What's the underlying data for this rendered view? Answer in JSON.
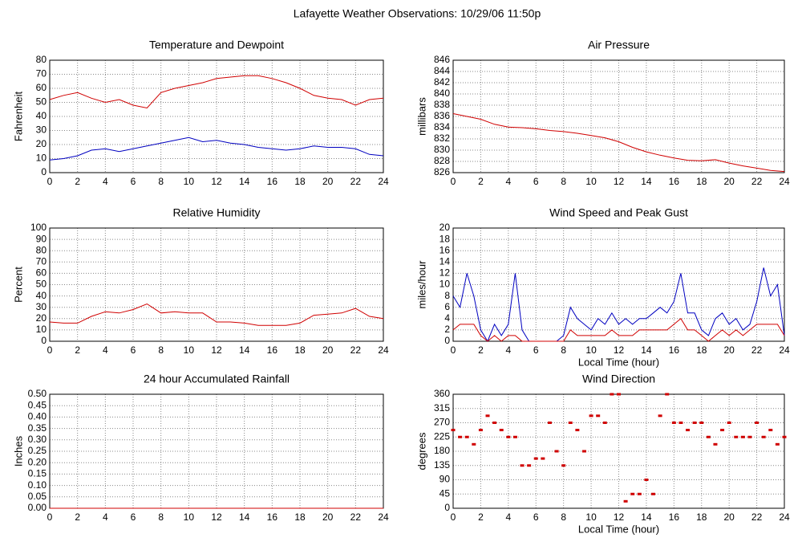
{
  "title": "Lafayette Weather Observations: 10/29/06 11:50p",
  "chart_data": [
    {
      "type": "line",
      "title": "Temperature and Dewpoint",
      "ylabel": "Fahrenheit",
      "x": [
        0,
        1,
        2,
        3,
        4,
        5,
        6,
        7,
        8,
        9,
        10,
        11,
        12,
        13,
        14,
        15,
        16,
        17,
        18,
        19,
        20,
        21,
        22,
        23,
        24
      ],
      "series": [
        {
          "color": "#d00000",
          "values": [
            52,
            55,
            57,
            53,
            50,
            52,
            48,
            46,
            57,
            60,
            62,
            64,
            67,
            68,
            69,
            69,
            67,
            64,
            60,
            55,
            53,
            52,
            48,
            52,
            53
          ]
        },
        {
          "color": "#0000c0",
          "values": [
            9,
            10,
            12,
            16,
            17,
            15,
            17,
            19,
            21,
            23,
            25,
            22,
            23,
            21,
            20,
            18,
            17,
            16,
            17,
            19,
            18,
            18,
            17,
            13,
            12
          ]
        }
      ],
      "xlim": [
        0,
        24
      ],
      "xticks": [
        0,
        2,
        4,
        6,
        8,
        10,
        12,
        14,
        16,
        18,
        20,
        22,
        24
      ],
      "ylim": [
        0,
        80
      ],
      "yticks": [
        0,
        10,
        20,
        30,
        40,
        50,
        60,
        70,
        80
      ],
      "grid": true
    },
    {
      "type": "line",
      "title": "Air Pressure",
      "ylabel": "millibars",
      "x": [
        0,
        1,
        2,
        3,
        4,
        5,
        6,
        7,
        8,
        9,
        10,
        11,
        12,
        13,
        14,
        15,
        16,
        17,
        18,
        19,
        20,
        21,
        22,
        23,
        24
      ],
      "series": [
        {
          "color": "#d00000",
          "values": [
            836.5,
            836,
            835.5,
            834.6,
            834.1,
            834,
            833.8,
            833.5,
            833.3,
            833,
            832.6,
            832.2,
            831.5,
            830.5,
            829.7,
            829.1,
            828.6,
            828.2,
            828.1,
            828.3,
            827.7,
            827.2,
            826.8,
            826.4,
            826.2
          ]
        }
      ],
      "xlim": [
        0,
        24
      ],
      "xticks": [
        0,
        2,
        4,
        6,
        8,
        10,
        12,
        14,
        16,
        18,
        20,
        22,
        24
      ],
      "ylim": [
        826,
        846
      ],
      "yticks": [
        826,
        828,
        830,
        832,
        834,
        836,
        838,
        840,
        842,
        844,
        846
      ],
      "grid": true
    },
    {
      "type": "line",
      "title": "Relative Humidity",
      "ylabel": "Percent",
      "x": [
        0,
        1,
        2,
        3,
        4,
        5,
        6,
        7,
        8,
        9,
        10,
        11,
        12,
        13,
        14,
        15,
        16,
        17,
        18,
        19,
        20,
        21,
        22,
        23,
        24
      ],
      "series": [
        {
          "color": "#d00000",
          "values": [
            17,
            16,
            16,
            22,
            26,
            25,
            28,
            33,
            25,
            26,
            25,
            25,
            17,
            17,
            16,
            14,
            14,
            14,
            16,
            23,
            24,
            25,
            29,
            22,
            20
          ]
        }
      ],
      "xlim": [
        0,
        24
      ],
      "xticks": [
        0,
        2,
        4,
        6,
        8,
        10,
        12,
        14,
        16,
        18,
        20,
        22,
        24
      ],
      "ylim": [
        0,
        100
      ],
      "yticks": [
        0,
        10,
        20,
        30,
        40,
        50,
        60,
        70,
        80,
        90,
        100
      ],
      "grid": true
    },
    {
      "type": "line",
      "title": "Wind Speed and Peak Gust",
      "ylabel": "miles/hour",
      "xlabel": "Local Time (hour)",
      "x": [
        0,
        0.5,
        1,
        1.5,
        2,
        2.5,
        3,
        3.5,
        4,
        4.5,
        5,
        5.5,
        6,
        6.5,
        7,
        7.5,
        8,
        8.5,
        9,
        9.5,
        10,
        10.5,
        11,
        11.5,
        12,
        12.5,
        13,
        13.5,
        14,
        14.5,
        15,
        15.5,
        16,
        16.5,
        17,
        17.5,
        18,
        18.5,
        19,
        19.5,
        20,
        20.5,
        21,
        21.5,
        22,
        22.5,
        23,
        23.5,
        24
      ],
      "series": [
        {
          "color": "#0000c0",
          "values": [
            8,
            6,
            12,
            8,
            2,
            0,
            3,
            1,
            3,
            12,
            2,
            0,
            0,
            0,
            0,
            0,
            1,
            6,
            4,
            3,
            2,
            4,
            3,
            5,
            3,
            4,
            3,
            4,
            4,
            5,
            6,
            5,
            7,
            12,
            5,
            5,
            2,
            1,
            4,
            5,
            3,
            4,
            2,
            3,
            7,
            13,
            8,
            10,
            1
          ]
        },
        {
          "color": "#d00000",
          "values": [
            2,
            3,
            3,
            3,
            1,
            0,
            1,
            0,
            1,
            1,
            0,
            0,
            0,
            0,
            0,
            0,
            0,
            2,
            1,
            1,
            1,
            1,
            1,
            2,
            1,
            1,
            1,
            2,
            2,
            2,
            2,
            2,
            3,
            4,
            2,
            2,
            1,
            0,
            1,
            2,
            1,
            2,
            1,
            2,
            3,
            3,
            3,
            3,
            1
          ]
        }
      ],
      "xlim": [
        0,
        24
      ],
      "xticks": [
        0,
        2,
        4,
        6,
        8,
        10,
        12,
        14,
        16,
        18,
        20,
        22,
        24
      ],
      "ylim": [
        0,
        20
      ],
      "yticks": [
        0,
        2,
        4,
        6,
        8,
        10,
        12,
        14,
        16,
        18,
        20
      ],
      "grid": true
    },
    {
      "type": "line",
      "title": "24 hour Accumulated Rainfall",
      "ylabel": "Inches",
      "x": [
        0,
        24
      ],
      "series": [
        {
          "color": "#d00000",
          "values": [
            0,
            0
          ]
        }
      ],
      "xlim": [
        0,
        24
      ],
      "xticks": [
        0,
        2,
        4,
        6,
        8,
        10,
        12,
        14,
        16,
        18,
        20,
        22,
        24
      ],
      "ylim": [
        0,
        0.5
      ],
      "yticks": [
        {
          "value": 0,
          "label": "0.00"
        },
        {
          "value": 0.05,
          "label": "0.05"
        },
        {
          "value": 0.1,
          "label": "0.10"
        },
        {
          "value": 0.15,
          "label": "0.15"
        },
        {
          "value": 0.2,
          "label": "0.20"
        },
        {
          "value": 0.25,
          "label": "0.25"
        },
        {
          "value": 0.3,
          "label": "0.30"
        },
        {
          "value": 0.35,
          "label": "0.35"
        },
        {
          "value": 0.4,
          "label": "0.40"
        },
        {
          "value": 0.45,
          "label": "0.45"
        },
        {
          "value": 0.5,
          "label": "0.50"
        }
      ],
      "grid": true
    },
    {
      "type": "scatter",
      "title": "Wind Direction",
      "ylabel": "degrees",
      "xlabel": "Local Time (hour)",
      "x": [
        0,
        0.5,
        1,
        1.5,
        2,
        2.5,
        3,
        3.5,
        4,
        4.5,
        5,
        5.5,
        6,
        6.5,
        7,
        7.5,
        8,
        8.5,
        9,
        9.5,
        10,
        10.5,
        11,
        11.5,
        12,
        12.5,
        13,
        13.5,
        14,
        14.5,
        15,
        15.5,
        16,
        16.5,
        17,
        17.5,
        18,
        18.5,
        19,
        19.5,
        20,
        20.5,
        21,
        21.5,
        22,
        22.5,
        23,
        23.5,
        24
      ],
      "series": [
        {
          "color": "#d00000",
          "values": [
            247,
            225,
            225,
            202,
            247,
            292,
            270,
            247,
            225,
            225,
            135,
            135,
            157,
            157,
            270,
            180,
            135,
            270,
            247,
            180,
            292,
            292,
            270,
            360,
            360,
            22,
            45,
            45,
            90,
            45,
            292,
            360,
            270,
            270,
            247,
            270,
            270,
            225,
            202,
            247,
            270,
            225,
            225,
            225,
            270,
            225,
            247,
            202,
            225
          ]
        }
      ],
      "xlim": [
        0,
        24
      ],
      "xticks": [
        0,
        2,
        4,
        6,
        8,
        10,
        12,
        14,
        16,
        18,
        20,
        22,
        24
      ],
      "ylim": [
        0,
        360
      ],
      "yticks": [
        0,
        45,
        90,
        135,
        180,
        225,
        270,
        315,
        360
      ],
      "grid": true
    }
  ]
}
